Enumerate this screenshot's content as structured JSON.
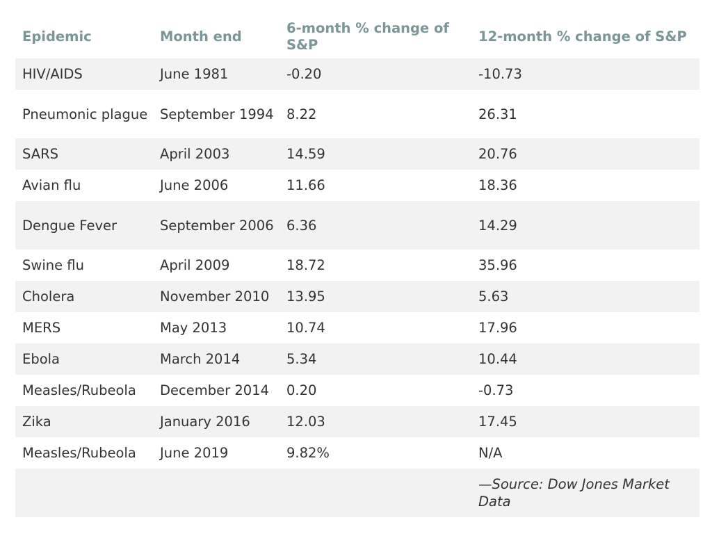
{
  "table": {
    "headers": [
      "Epidemic",
      "Month end",
      "6-month % change of S&P",
      "12-month % change of S&P"
    ],
    "rows": [
      [
        "HIV/AIDS",
        "June 1981",
        "-0.20",
        "-10.73"
      ],
      [
        "Pneumonic plague",
        "September 1994",
        "8.22",
        "26.31"
      ],
      [
        "SARS",
        "April 2003",
        "14.59",
        "20.76"
      ],
      [
        "Avian flu",
        "June 2006",
        "11.66",
        "18.36"
      ],
      [
        "Dengue Fever",
        "September 2006",
        "6.36",
        "14.29"
      ],
      [
        "Swine flu",
        "April 2009",
        "18.72",
        "35.96"
      ],
      [
        "Cholera",
        "November 2010",
        "13.95",
        "5.63"
      ],
      [
        "MERS",
        "May 2013",
        "10.74",
        "17.96"
      ],
      [
        "Ebola",
        "March 2014",
        "5.34",
        "10.44"
      ],
      [
        "Measles/Rubeola",
        "December 2014",
        "0.20",
        "-0.73"
      ],
      [
        "Zika",
        "January 2016",
        "12.03",
        "17.45"
      ],
      [
        "Measles/Rubeola",
        "June 2019",
        "9.82%",
        "N/A"
      ]
    ],
    "source": "—Source: Dow Jones Market Data"
  },
  "colors": {
    "header_text": "#7a9697",
    "stripe": "#f2f2f2",
    "body_text": "#333333"
  }
}
